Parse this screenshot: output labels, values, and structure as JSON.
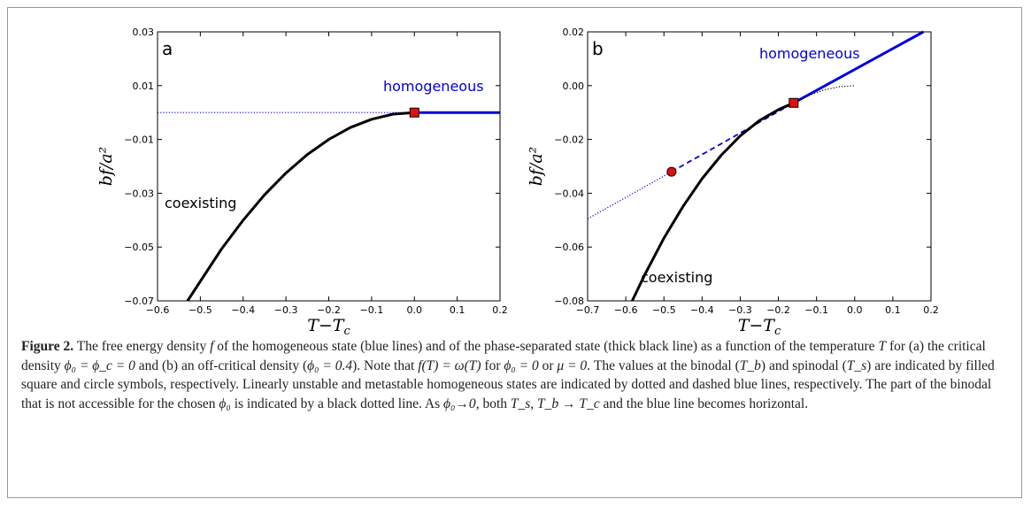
{
  "figure": {
    "caption_label": "Figure 2.",
    "caption_parts": [
      " The free energy density ",
      "f",
      " of the homogeneous state (blue lines) and of the phase-separated state (thick black line) as a function of the temperature ",
      "T",
      " for (a) the critical density ",
      "ϕ₀ = ϕ_c = 0",
      " and (b) an off-critical density (",
      "ϕ₀ = 0.4",
      "). Note that ",
      "f(T) = ω(T)",
      " for ",
      "ϕ₀ = 0",
      " or ",
      "μ = 0",
      ". The values at the binodal (",
      "T_b",
      ") and spinodal (",
      "T_s",
      ") are indicated by filled square and circle symbols, respectively. Linearly unstable and metastable homogeneous states are indicated by dotted and dashed blue lines, respectively. The part of the binodal that is not accessible for the chosen ",
      "ϕ₀",
      " is indicated by a black dotted line. As ",
      "ϕ₀→0",
      ", both ",
      "T_s, T_b → T_c",
      " and the blue line becomes horizontal."
    ]
  },
  "chart_data": [
    {
      "type": "line",
      "panel": "a",
      "xlabel": "T−T_c",
      "ylabel": "bf/a²",
      "xlim": [
        -0.6,
        0.2
      ],
      "ylim": [
        -0.07,
        0.03
      ],
      "xticks": [
        "−0.6",
        "−0.5",
        "−0.4",
        "−0.3",
        "−0.2",
        "−0.1",
        "0.0",
        "0.1",
        "0.2"
      ],
      "yticks": [
        "−0.07",
        "−0.05",
        "−0.03",
        "−0.01",
        "0.01",
        "0.03"
      ],
      "annotations": [
        "homogeneous",
        "coexisting"
      ],
      "series": [
        {
          "style": "blue-dotted",
          "x": [
            -0.6,
            0.0
          ],
          "y": [
            0.0,
            0.0
          ]
        },
        {
          "style": "blue-solid",
          "x": [
            0.0,
            0.2
          ],
          "y": [
            0.0,
            0.0
          ]
        },
        {
          "style": "black-thick",
          "x": [
            -0.53,
            -0.45,
            -0.4,
            -0.35,
            -0.3,
            -0.25,
            -0.2,
            -0.15,
            -0.1,
            -0.05,
            0.0
          ],
          "y": [
            -0.07,
            -0.0506,
            -0.04,
            -0.0306,
            -0.0225,
            -0.0156,
            -0.01,
            -0.0056,
            -0.0025,
            -0.0006,
            0.0
          ]
        }
      ],
      "markers": [
        {
          "kind": "square",
          "label": "binodal",
          "x": 0.0,
          "y": 0.0
        }
      ],
      "colors": {
        "blue": "#0000dd",
        "black": "#000000",
        "marker": "#e01010"
      }
    },
    {
      "type": "line",
      "panel": "b",
      "xlabel": "T−T_c",
      "ylabel": "bf/a²",
      "xlim": [
        -0.7,
        0.2
      ],
      "ylim": [
        -0.08,
        0.02
      ],
      "xticks": [
        "−0.7",
        "−0.6",
        "−0.5",
        "−0.4",
        "−0.3",
        "−0.2",
        "−0.1",
        "0.0",
        "0.1",
        "0.2"
      ],
      "yticks": [
        "−0.08",
        "−0.06",
        "−0.04",
        "−0.02",
        "0.00",
        "0.02"
      ],
      "annotations": [
        "homogeneous",
        "coexisting"
      ],
      "series": [
        {
          "style": "blue-dotted",
          "x": [
            -0.7,
            -0.48
          ],
          "y": [
            -0.0495,
            -0.032
          ]
        },
        {
          "style": "blue-dashed",
          "x": [
            -0.48,
            -0.16
          ],
          "y": [
            -0.032,
            -0.0064
          ]
        },
        {
          "style": "blue-solid",
          "x": [
            -0.16,
            0.18
          ],
          "y": [
            -0.0064,
            0.02
          ]
        },
        {
          "style": "black-thick",
          "x": [
            -0.583,
            -0.55,
            -0.5,
            -0.45,
            -0.4,
            -0.35,
            -0.3,
            -0.25,
            -0.2,
            -0.16
          ],
          "y": [
            -0.08,
            -0.0702,
            -0.0567,
            -0.0449,
            -0.0346,
            -0.0259,
            -0.0187,
            -0.013,
            -0.0089,
            -0.0064
          ]
        },
        {
          "style": "black-dotted",
          "x": [
            -0.16,
            -0.12,
            -0.08,
            -0.04,
            0.0
          ],
          "y": [
            -0.0064,
            -0.0036,
            -0.0016,
            -0.0004,
            0.0
          ]
        }
      ],
      "markers": [
        {
          "kind": "square",
          "label": "binodal",
          "x": -0.16,
          "y": -0.0064
        },
        {
          "kind": "circle",
          "label": "spinodal",
          "x": -0.48,
          "y": -0.032
        }
      ],
      "colors": {
        "blue": "#0000dd",
        "black": "#000000",
        "marker": "#e01010"
      }
    }
  ]
}
